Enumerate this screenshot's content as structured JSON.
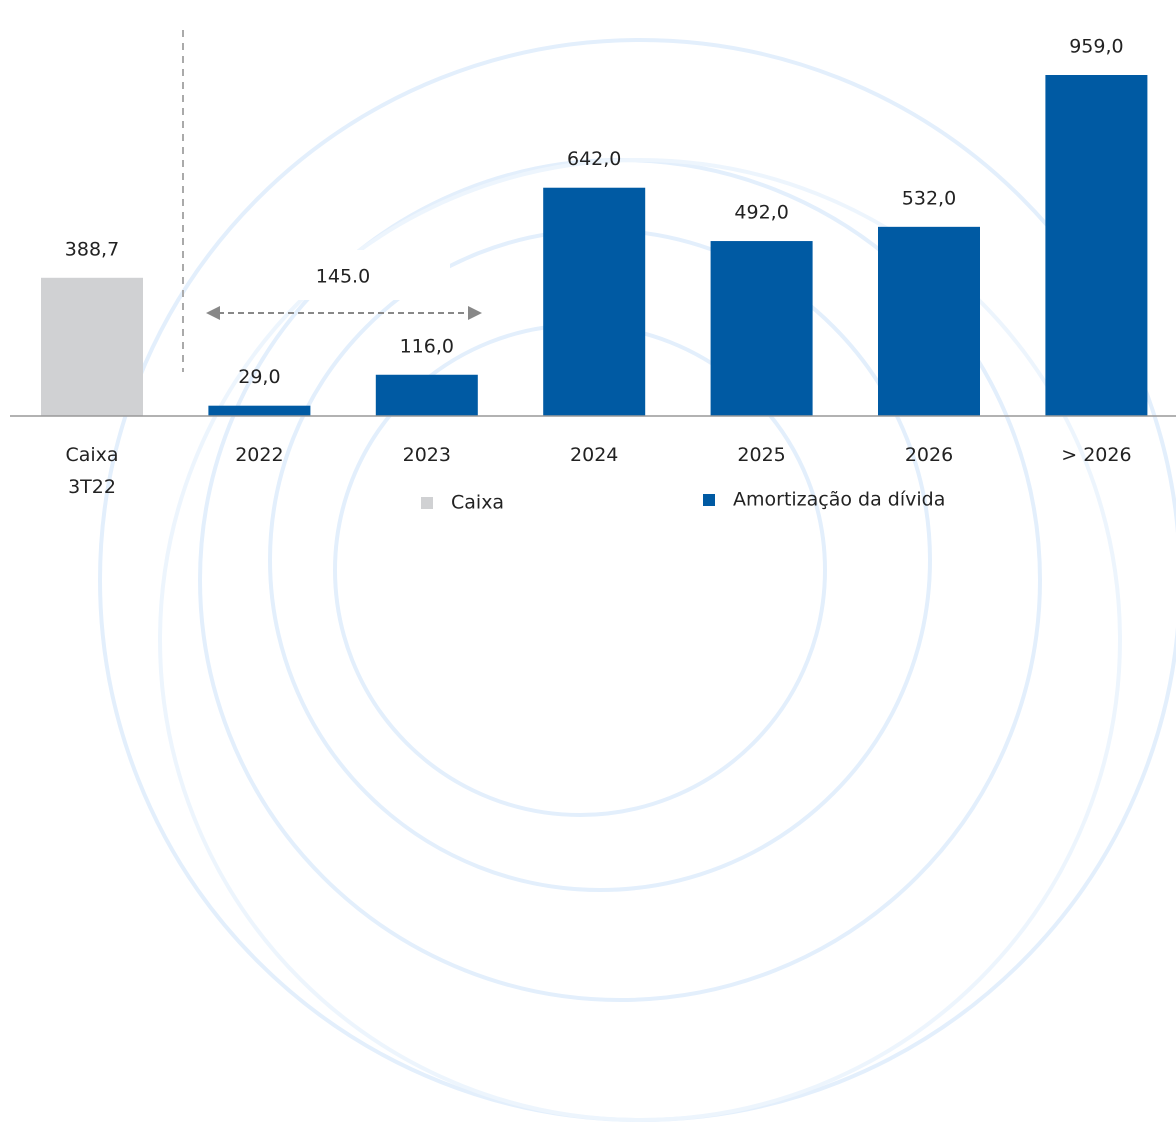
{
  "chart_data": {
    "type": "bar",
    "categories": [
      "Caixa\n3T22",
      "2022",
      "2023",
      "2024",
      "2025",
      "2026",
      "> 2026"
    ],
    "series": [
      {
        "name": "Caixa",
        "color": "#d0d1d3",
        "values": [
          388.7,
          null,
          null,
          null,
          null,
          null,
          null
        ],
        "value_labels": [
          "388,7",
          null,
          null,
          null,
          null,
          null,
          null
        ]
      },
      {
        "name": "Amortização da dívida",
        "color": "#005aa3",
        "values": [
          null,
          29.0,
          116.0,
          642.0,
          492.0,
          532.0,
          959.0
        ],
        "value_labels": [
          null,
          "29,0",
          "116,0",
          "642,0",
          "492,0",
          "532,0",
          "959,0"
        ]
      }
    ],
    "annotation": "145.0"
  }
}
